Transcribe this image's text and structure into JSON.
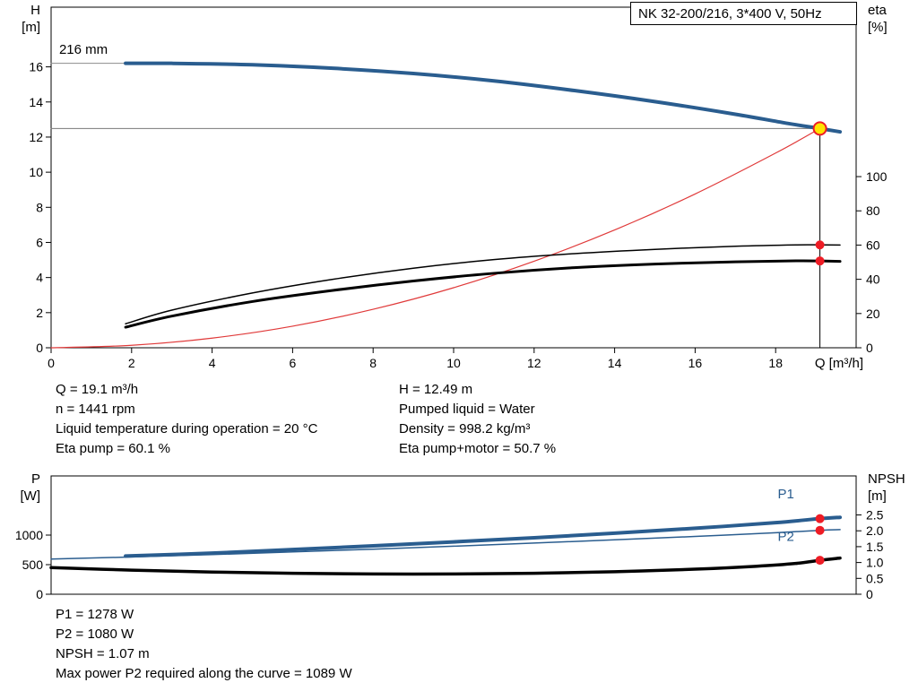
{
  "title_box": {
    "text": "NK 32-200/216, 3*400 V, 50Hz"
  },
  "info_top_left": {
    "lines": [
      "Q = 19.1 m³/h",
      "n = 1441 rpm",
      "Liquid temperature during operation = 20 °C",
      "Eta pump = 60.1 %"
    ]
  },
  "info_top_right": {
    "lines": [
      "H = 12.49 m",
      "Pumped liquid = Water",
      "Density = 998.2 kg/m³",
      "Eta pump+motor = 50.7 %"
    ]
  },
  "info_bottom": {
    "lines": [
      "P1 = 1278 W",
      "P2 = 1080 W",
      "NPSH = 1.07 m",
      "Max power P2 required along the curve = 1089 W"
    ]
  },
  "colors": {
    "curve_blue": "#2a5d8f",
    "marker_red": "#ee1c25",
    "duty_yellow": "#ffe400",
    "system_red": "#e03a3a",
    "ref_gray": "#8c8c8c"
  },
  "chart_data": [
    {
      "id": "hq-chart",
      "type": "line",
      "title": "NK 32-200/216, 3*400 V, 50Hz",
      "x_axis": {
        "label": "Q [m³/h]",
        "min": 0,
        "max": 20,
        "show_tick_labels": true,
        "ticks": [
          [
            0,
            "0"
          ],
          [
            2,
            "2"
          ],
          [
            4,
            "4"
          ],
          [
            6,
            "6"
          ],
          [
            8,
            "8"
          ],
          [
            10,
            "10"
          ],
          [
            12,
            "12"
          ],
          [
            14,
            "14"
          ],
          [
            16,
            "16"
          ],
          [
            18,
            "18"
          ]
        ]
      },
      "y_left": {
        "label_lines": [
          "H",
          "[m]"
        ],
        "min": 0,
        "max": 19.4,
        "ticks": [
          [
            0,
            "0"
          ],
          [
            2,
            "2"
          ],
          [
            4,
            "4"
          ],
          [
            6,
            "6"
          ],
          [
            8,
            "8"
          ],
          [
            10,
            "10"
          ],
          [
            12,
            "12"
          ],
          [
            14,
            "14"
          ],
          [
            16,
            "16"
          ]
        ]
      },
      "y_right": {
        "label_lines": [
          "eta",
          "[%]"
        ],
        "min": 0,
        "max": 199,
        "ticks": [
          [
            0,
            "0"
          ],
          [
            20,
            "20"
          ],
          [
            40,
            "40"
          ],
          [
            60,
            "60"
          ],
          [
            80,
            "80"
          ],
          [
            100,
            "100"
          ]
        ]
      },
      "duty_point": {
        "q": 19.1,
        "h": 12.49
      },
      "series": [
        {
          "name": "impeller-ref-line",
          "axis": "left",
          "color": "#8c8c8c",
          "width": 1,
          "points": [
            [
              0,
              16.2
            ],
            [
              1.85,
              16.2
            ]
          ]
        },
        {
          "name": "duty-head-line",
          "axis": "left",
          "color": "#7a7a7a",
          "width": 1,
          "points": [
            [
              0,
              12.49
            ],
            [
              19.1,
              12.49
            ]
          ]
        },
        {
          "name": "duty-flow-line",
          "axis": "left",
          "color": "#000000",
          "width": 1,
          "points": [
            [
              19.1,
              0
            ],
            [
              19.1,
              12.49
            ]
          ]
        },
        {
          "name": "system-curve",
          "axis": "left",
          "color": "#e03a3a",
          "width": 1.2,
          "points": [
            [
              0,
              0
            ],
            [
              2,
              0.14
            ],
            [
              4,
              0.55
            ],
            [
              6,
              1.23
            ],
            [
              8,
              2.19
            ],
            [
              10,
              3.42
            ],
            [
              12,
              4.93
            ],
            [
              14,
              6.71
            ],
            [
              16,
              8.76
            ],
            [
              18,
              11.09
            ],
            [
              19.1,
              12.49
            ]
          ]
        },
        {
          "name": "head-curve-216mm",
          "axis": "left",
          "color": "#2a5d8f",
          "width": 4,
          "points": [
            [
              1.85,
              16.2
            ],
            [
              3,
              16.2
            ],
            [
              5,
              16.12
            ],
            [
              7,
              15.92
            ],
            [
              9,
              15.62
            ],
            [
              11,
              15.2
            ],
            [
              13,
              14.65
            ],
            [
              15,
              14.02
            ],
            [
              17,
              13.3
            ],
            [
              18.3,
              12.78
            ],
            [
              19.1,
              12.49
            ],
            [
              19.6,
              12.3
            ]
          ]
        },
        {
          "name": "eta-pump-curve",
          "axis": "right",
          "color": "#000000",
          "width": 1.5,
          "points": [
            [
              1.85,
              14
            ],
            [
              3,
              22
            ],
            [
              5,
              32
            ],
            [
              7,
              40
            ],
            [
              9,
              46.5
            ],
            [
              11,
              51.5
            ],
            [
              13,
              55
            ],
            [
              15,
              57.5
            ],
            [
              17,
              59.3
            ],
            [
              18.5,
              60.1
            ],
            [
              19.1,
              60.1
            ],
            [
              19.6,
              60
            ]
          ]
        },
        {
          "name": "eta-pump-motor-curve",
          "axis": "right",
          "color": "#000000",
          "width": 3,
          "points": [
            [
              1.85,
              12
            ],
            [
              3,
              18.5
            ],
            [
              5,
              27
            ],
            [
              7,
              33.5
            ],
            [
              9,
              39
            ],
            [
              11,
              43.5
            ],
            [
              13,
              46.8
            ],
            [
              15,
              48.9
            ],
            [
              17,
              50.2
            ],
            [
              18.5,
              50.8
            ],
            [
              19.1,
              50.7
            ],
            [
              19.6,
              50.5
            ]
          ]
        }
      ],
      "markers": [
        {
          "name": "eta-pump-point",
          "axis": "right",
          "q": 19.1,
          "v": 60.1,
          "r": 5,
          "fill": "#ee1c25"
        },
        {
          "name": "eta-pump-motor-point",
          "axis": "right",
          "q": 19.1,
          "v": 50.7,
          "r": 5,
          "fill": "#ee1c25"
        },
        {
          "name": "duty-point",
          "axis": "left",
          "q": 19.1,
          "v": 12.49,
          "r": 7,
          "fill": "#ffe400",
          "stroke": "#ee1c25",
          "stroke_width": 2
        }
      ],
      "annotations": [
        {
          "name": "impeller-size-label",
          "text": "216 mm",
          "axis": "left",
          "q": 0.2,
          "v": 16.75,
          "color": "#000000"
        }
      ]
    },
    {
      "id": "power-npsh-chart",
      "type": "line",
      "x_axis": {
        "label": "",
        "min": 0,
        "max": 20,
        "show_tick_labels": false,
        "ticks": []
      },
      "y_left": {
        "label_lines": [
          "P",
          "[W]"
        ],
        "min": 0,
        "max": 2000,
        "ticks": [
          [
            0,
            "0"
          ],
          [
            500,
            "500"
          ],
          [
            1000,
            "1000"
          ]
        ]
      },
      "y_right": {
        "label_lines": [
          "NPSH",
          "[m]"
        ],
        "min": 0,
        "max": 3.73,
        "ticks": [
          [
            0,
            "0"
          ],
          [
            0.5,
            "0.5"
          ],
          [
            1,
            "1.0"
          ],
          [
            1.5,
            "1.5"
          ],
          [
            2,
            "2.0"
          ],
          [
            2.5,
            "2.5"
          ]
        ]
      },
      "series": [
        {
          "name": "p1-curve",
          "axis": "left",
          "color": "#2a5d8f",
          "width": 4,
          "points": [
            [
              1.85,
              645
            ],
            [
              4,
              695
            ],
            [
              6,
              755
            ],
            [
              8,
              818
            ],
            [
              10,
              885
            ],
            [
              12,
              955
            ],
            [
              14,
              1032
            ],
            [
              16,
              1115
            ],
            [
              18,
              1210
            ],
            [
              19.1,
              1278
            ],
            [
              19.6,
              1300
            ]
          ]
        },
        {
          "name": "p2-curve",
          "axis": "left",
          "color": "#2a5d8f",
          "width": 1.5,
          "points": [
            [
              0,
              595
            ],
            [
              2,
              630
            ],
            [
              4,
              670
            ],
            [
              6,
              715
            ],
            [
              8,
              762
            ],
            [
              10,
              812
            ],
            [
              12,
              865
            ],
            [
              14,
              920
            ],
            [
              16,
              977
            ],
            [
              18,
              1040
            ],
            [
              19.1,
              1080
            ],
            [
              19.6,
              1092
            ]
          ]
        },
        {
          "name": "npsh-curve",
          "axis": "right",
          "color": "#000000",
          "width": 3.5,
          "points": [
            [
              0,
              0.84
            ],
            [
              2,
              0.76
            ],
            [
              4,
              0.7
            ],
            [
              6,
              0.66
            ],
            [
              8,
              0.64
            ],
            [
              10,
              0.64
            ],
            [
              12,
              0.66
            ],
            [
              14,
              0.71
            ],
            [
              16,
              0.79
            ],
            [
              17.5,
              0.88
            ],
            [
              18.5,
              0.97
            ],
            [
              19.1,
              1.07
            ],
            [
              19.6,
              1.14
            ]
          ]
        }
      ],
      "markers": [
        {
          "name": "p1-point",
          "axis": "left",
          "q": 19.1,
          "v": 1278,
          "r": 5,
          "fill": "#ee1c25"
        },
        {
          "name": "p2-point",
          "axis": "left",
          "q": 19.1,
          "v": 1080,
          "r": 5,
          "fill": "#ee1c25"
        },
        {
          "name": "npsh-point",
          "axis": "right",
          "q": 19.1,
          "v": 1.07,
          "r": 5,
          "fill": "#ee1c25"
        }
      ],
      "annotations": [
        {
          "name": "p1-label",
          "text": "P1",
          "axis": "left",
          "q": 18.05,
          "v": 1620,
          "color": "#2a5d8f"
        },
        {
          "name": "p2-label",
          "text": "P2",
          "axis": "left",
          "q": 18.05,
          "v": 900,
          "color": "#2a5d8f"
        }
      ]
    }
  ]
}
